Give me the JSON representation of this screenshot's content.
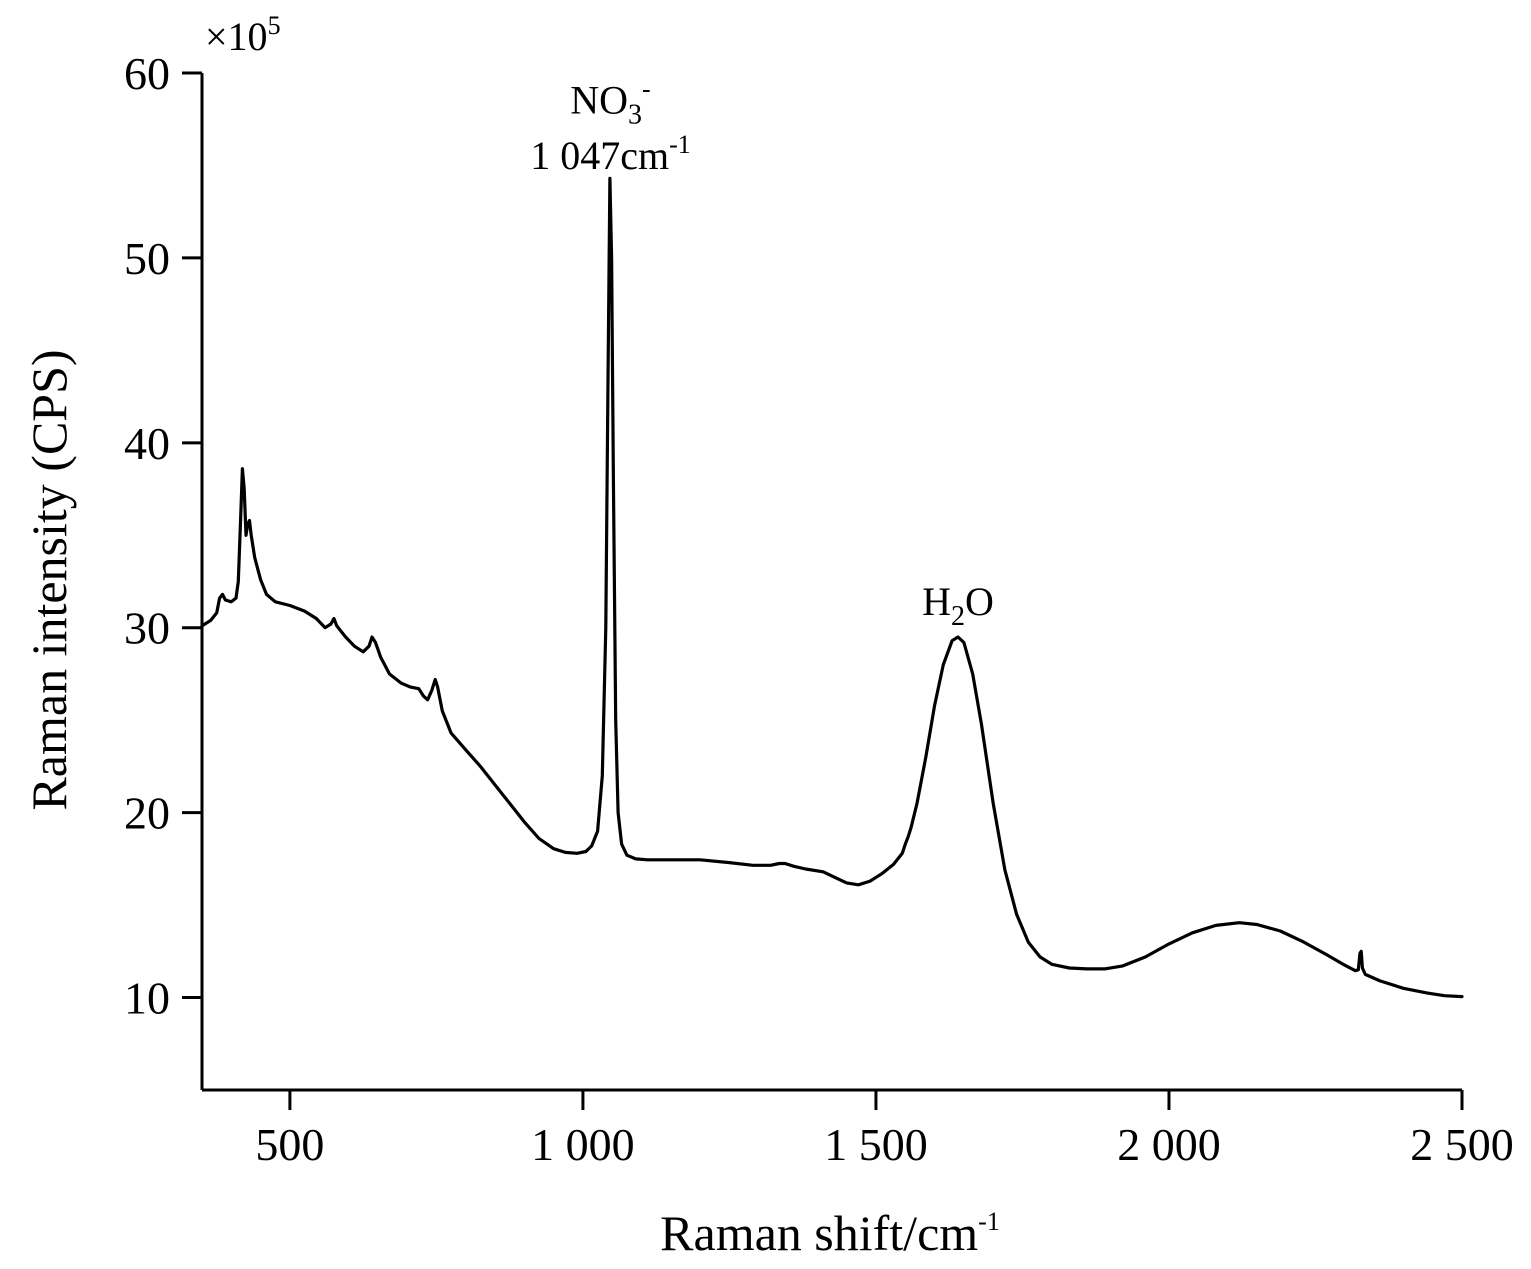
{
  "chart_data": {
    "type": "line",
    "title": "",
    "xlabel": "Raman shift/cm",
    "xlabel_sup": "-1",
    "ylabel": "Raman intensity (CPS)",
    "y_multiplier": "×10",
    "y_multiplier_sup": "5",
    "xlim": [
      350,
      2500
    ],
    "ylim": [
      5,
      60
    ],
    "x_ticks": [
      {
        "value": 500,
        "label": "500"
      },
      {
        "value": 1000,
        "label": "1 000"
      },
      {
        "value": 1500,
        "label": "1 500"
      },
      {
        "value": 2000,
        "label": "2 000"
      },
      {
        "value": 2500,
        "label": "2 500"
      }
    ],
    "y_ticks": [
      {
        "value": 10,
        "label": "10"
      },
      {
        "value": 20,
        "label": "20"
      },
      {
        "value": 30,
        "label": "30"
      },
      {
        "value": 40,
        "label": "40"
      },
      {
        "value": 50,
        "label": "50"
      },
      {
        "value": 60,
        "label": "60"
      }
    ],
    "grid": false,
    "legend": "none",
    "annotations": [
      {
        "id": "no3",
        "base": "NO",
        "sub": "3",
        "sup": "-",
        "x": 1047,
        "y": 57.8
      },
      {
        "id": "no3-shift",
        "base": "1 047cm",
        "sup": "-1",
        "x": 1047,
        "y": 54.8
      },
      {
        "id": "h2o",
        "base": "H",
        "sub": "2",
        "after": "O",
        "x": 1640,
        "y": 30.7
      }
    ],
    "series": [
      {
        "color": "#000000",
        "points": [
          [
            350,
            30.1
          ],
          [
            365,
            30.4
          ],
          [
            375,
            30.8
          ],
          [
            380,
            31.6
          ],
          [
            385,
            31.8
          ],
          [
            390,
            31.5
          ],
          [
            400,
            31.4
          ],
          [
            408,
            31.6
          ],
          [
            412,
            32.5
          ],
          [
            416,
            36.0
          ],
          [
            419,
            38.6
          ],
          [
            422,
            37.5
          ],
          [
            425,
            35.0
          ],
          [
            428,
            35.6
          ],
          [
            431,
            35.8
          ],
          [
            434,
            35.0
          ],
          [
            440,
            33.8
          ],
          [
            450,
            32.6
          ],
          [
            460,
            31.8
          ],
          [
            475,
            31.4
          ],
          [
            500,
            31.2
          ],
          [
            525,
            30.9
          ],
          [
            545,
            30.5
          ],
          [
            560,
            30.0
          ],
          [
            570,
            30.2
          ],
          [
            575,
            30.5
          ],
          [
            580,
            30.1
          ],
          [
            595,
            29.5
          ],
          [
            610,
            29.0
          ],
          [
            625,
            28.7
          ],
          [
            635,
            29.0
          ],
          [
            640,
            29.5
          ],
          [
            646,
            29.2
          ],
          [
            655,
            28.4
          ],
          [
            670,
            27.5
          ],
          [
            690,
            27.0
          ],
          [
            705,
            26.8
          ],
          [
            720,
            26.7
          ],
          [
            728,
            26.3
          ],
          [
            735,
            26.1
          ],
          [
            742,
            26.6
          ],
          [
            748,
            27.2
          ],
          [
            752,
            26.8
          ],
          [
            760,
            25.5
          ],
          [
            775,
            24.3
          ],
          [
            800,
            23.4
          ],
          [
            825,
            22.5
          ],
          [
            850,
            21.5
          ],
          [
            875,
            20.5
          ],
          [
            900,
            19.5
          ],
          [
            925,
            18.6
          ],
          [
            950,
            18.05
          ],
          [
            970,
            17.85
          ],
          [
            990,
            17.8
          ],
          [
            1005,
            17.9
          ],
          [
            1015,
            18.2
          ],
          [
            1025,
            19.0
          ],
          [
            1033,
            22.0
          ],
          [
            1039,
            30.0
          ],
          [
            1043,
            44.0
          ],
          [
            1046,
            54.3
          ],
          [
            1049,
            50.0
          ],
          [
            1052,
            38.0
          ],
          [
            1056,
            25.0
          ],
          [
            1060,
            20.0
          ],
          [
            1066,
            18.3
          ],
          [
            1075,
            17.7
          ],
          [
            1090,
            17.5
          ],
          [
            1110,
            17.45
          ],
          [
            1150,
            17.45
          ],
          [
            1200,
            17.45
          ],
          [
            1250,
            17.3
          ],
          [
            1290,
            17.15
          ],
          [
            1320,
            17.15
          ],
          [
            1335,
            17.25
          ],
          [
            1345,
            17.25
          ],
          [
            1360,
            17.1
          ],
          [
            1380,
            16.95
          ],
          [
            1410,
            16.8
          ],
          [
            1430,
            16.5
          ],
          [
            1450,
            16.2
          ],
          [
            1470,
            16.1
          ],
          [
            1490,
            16.3
          ],
          [
            1510,
            16.7
          ],
          [
            1530,
            17.2
          ],
          [
            1545,
            17.8
          ],
          [
            1550,
            18.3
          ],
          [
            1555,
            18.7
          ],
          [
            1560,
            19.2
          ],
          [
            1570,
            20.5
          ],
          [
            1585,
            23.0
          ],
          [
            1600,
            25.8
          ],
          [
            1615,
            28.0
          ],
          [
            1630,
            29.3
          ],
          [
            1640,
            29.5
          ],
          [
            1650,
            29.2
          ],
          [
            1665,
            27.5
          ],
          [
            1680,
            24.8
          ],
          [
            1700,
            20.5
          ],
          [
            1720,
            16.9
          ],
          [
            1740,
            14.5
          ],
          [
            1760,
            13.0
          ],
          [
            1780,
            12.2
          ],
          [
            1800,
            11.8
          ],
          [
            1830,
            11.6
          ],
          [
            1860,
            11.55
          ],
          [
            1890,
            11.55
          ],
          [
            1920,
            11.7
          ],
          [
            1960,
            12.2
          ],
          [
            2000,
            12.9
          ],
          [
            2040,
            13.5
          ],
          [
            2080,
            13.9
          ],
          [
            2120,
            14.05
          ],
          [
            2150,
            13.95
          ],
          [
            2190,
            13.6
          ],
          [
            2230,
            13.0
          ],
          [
            2270,
            12.3
          ],
          [
            2300,
            11.75
          ],
          [
            2318,
            11.45
          ],
          [
            2323,
            11.5
          ],
          [
            2326,
            12.4
          ],
          [
            2328,
            12.5
          ],
          [
            2330,
            11.6
          ],
          [
            2335,
            11.25
          ],
          [
            2360,
            10.9
          ],
          [
            2400,
            10.5
          ],
          [
            2440,
            10.25
          ],
          [
            2470,
            10.1
          ],
          [
            2500,
            10.05
          ]
        ]
      }
    ]
  }
}
